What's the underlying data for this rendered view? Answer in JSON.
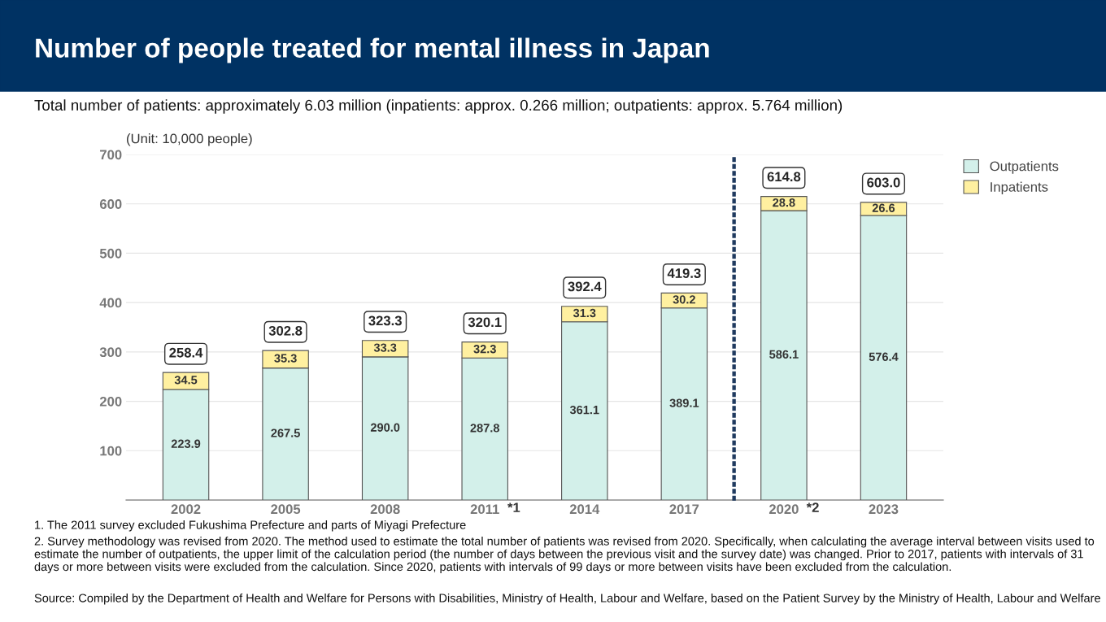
{
  "chart_data": {
    "type": "bar",
    "title": "Number of people treated for mental illness in Japan",
    "subtitle": "Total number of patients: approximately 6.03 million (inpatients: approx. 0.266 million; outpatients: approx. 5.764 million)",
    "ylabel": "(Unit: 10,000 people)",
    "categories": [
      "2002",
      "2005",
      "2008",
      "2011",
      "2014",
      "2017",
      "2020",
      "2023"
    ],
    "stacked": true,
    "series": [
      {
        "name": "Outpatients",
        "color": "#d3f0ea",
        "values": [
          223.9,
          267.5,
          290.0,
          287.8,
          361.1,
          389.1,
          586.1,
          576.4
        ],
        "value_labels": [
          "223.9",
          "267.5",
          "290.0",
          "287.8",
          "361.1",
          "389.1",
          "586.1",
          "576.4"
        ]
      },
      {
        "name": "Inpatients",
        "color": "#fff0a0",
        "values": [
          34.5,
          35.3,
          33.3,
          32.3,
          31.3,
          30.2,
          28.8,
          26.6
        ],
        "value_labels": [
          "34.5",
          "35.3",
          "33.3",
          "32.3",
          "31.3",
          "30.2",
          "28.8",
          "26.6"
        ]
      }
    ],
    "totals": [
      "258.4",
      "302.8",
      "323.3",
      "320.1",
      "392.4",
      "419.3",
      "614.8",
      "603.0"
    ],
    "ylim": [
      0,
      700
    ],
    "yticks": [
      100,
      200,
      300,
      400,
      500,
      600,
      700
    ],
    "grid": "y",
    "legend": "top right",
    "annotations": [
      {
        "text": "*1",
        "x": "2011",
        "y": 0
      },
      {
        "text": "*2",
        "x": "2020",
        "y": 0
      },
      "1. The 2011 survey excluded Fukushima Prefecture and parts of Miyagi Prefecture",
      "2. Survey methodology was revised from 2020. The method used to estimate the total number of patients was revised from 2020. Specifically, when calculating the average interval between visits used to estimate the number of outpatients, the upper limit of the calculation period (the number of days between the previous visit and the survey date) was changed. Prior to 2017, patients with intervals of 31 days or more between visits were excluded from the calculation. Since 2020, patients with intervals of 99 days or more between visits have been excluded from the calculation.",
      "Source: Compiled by the Department of Health and Welfare for Persons with Disabilities, Ministry of Health, Labour and Welfare, based on the Patient Survey by the Ministry of Health, Labour and Welfare"
    ]
  }
}
